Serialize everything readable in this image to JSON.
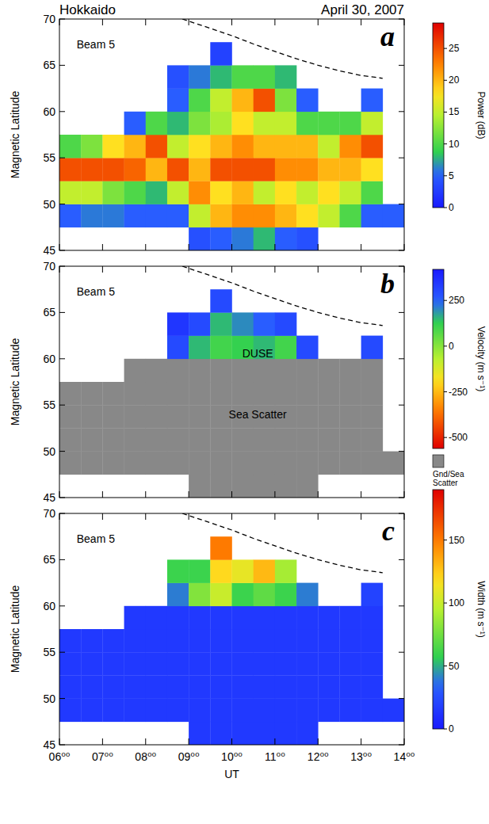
{
  "chart_data": [
    {
      "type": "heatmap",
      "title": "Hokkaido",
      "subtitle": "April 30, 2007",
      "panel_label": "a",
      "annotations": [
        {
          "text": "Beam 5",
          "x": 6.4,
          "y": 67.3
        }
      ],
      "y_label": "Magnetic Latitude",
      "xlim": [
        6,
        14
      ],
      "xticks": [
        6,
        7,
        8,
        9,
        10,
        11,
        12,
        13,
        14
      ],
      "ylim": [
        45,
        70
      ],
      "yticks": [
        45,
        50,
        55,
        60,
        65,
        70
      ],
      "tick_labels": "y",
      "x_bins": [
        6,
        6.5,
        7,
        7.5,
        8,
        8.5,
        9,
        9.5,
        10,
        10.5,
        11,
        11.5,
        12,
        12.5,
        13,
        13.5,
        14
      ],
      "y_bins": [
        45,
        47.5,
        50,
        52.5,
        55,
        57.5,
        60,
        62.5,
        65,
        67.5,
        70
      ],
      "values": [
        [
          null,
          5,
          15,
          25,
          10,
          null,
          null,
          null,
          null,
          null
        ],
        [
          null,
          6,
          15,
          25,
          12,
          null,
          null,
          null,
          null,
          null
        ],
        [
          null,
          6,
          12,
          25,
          18,
          null,
          null,
          null,
          null,
          null
        ],
        [
          null,
          5,
          10,
          24,
          20,
          5,
          null,
          null,
          null,
          null
        ],
        [
          null,
          5,
          8,
          20,
          25,
          10,
          null,
          null,
          null,
          null
        ],
        [
          null,
          5,
          15,
          25,
          15,
          8,
          5,
          4,
          null,
          null
        ],
        [
          4,
          15,
          22,
          20,
          18,
          12,
          10,
          6,
          null,
          null
        ],
        [
          5,
          20,
          18,
          25,
          20,
          14,
          15,
          8,
          3,
          null
        ],
        [
          6,
          22,
          20,
          25,
          22,
          18,
          20,
          10,
          null,
          null
        ],
        [
          8,
          22,
          15,
          25,
          20,
          15,
          25,
          10,
          null,
          null
        ],
        [
          5,
          20,
          18,
          22,
          20,
          15,
          12,
          8,
          null,
          null
        ],
        [
          4,
          18,
          15,
          22,
          20,
          10,
          5,
          null,
          null,
          null
        ],
        [
          null,
          15,
          18,
          20,
          15,
          10,
          null,
          null,
          null,
          null
        ],
        [
          null,
          10,
          15,
          20,
          22,
          10,
          null,
          null,
          null,
          null
        ],
        [
          null,
          5,
          10,
          18,
          25,
          15,
          5,
          null,
          null,
          null
        ],
        [
          null,
          5,
          null,
          null,
          null,
          null,
          null,
          null,
          null,
          null
        ]
      ],
      "colorbar": {
        "label": "Power (dB)",
        "range": [
          0,
          29
        ],
        "ticks": [
          0,
          5,
          10,
          15,
          20,
          25
        ]
      },
      "line": {
        "x": [
          8.85,
          9.5,
          10,
          10.5,
          11,
          11.5,
          12,
          12.5,
          13,
          13.5
        ],
        "y": [
          70,
          69,
          68.2,
          67.3,
          66.5,
          65.7,
          65,
          64.4,
          63.9,
          63.6
        ]
      },
      "line_style": "dashed"
    },
    {
      "type": "heatmap",
      "panel_label": "b",
      "annotations": [
        {
          "text": "Beam 5",
          "x": 6.4,
          "y": 67.3
        },
        {
          "text": "DUSE",
          "x": 10.6,
          "y": 60.6
        },
        {
          "text": "Sea Scatter",
          "x": 10.6,
          "y": 54
        }
      ],
      "y_label": "Magnetic Latitude",
      "xlim": [
        6,
        14
      ],
      "xticks": [
        6,
        7,
        8,
        9,
        10,
        11,
        12,
        13,
        14
      ],
      "ylim": [
        45,
        70
      ],
      "yticks": [
        45,
        50,
        55,
        60,
        65,
        70
      ],
      "tick_labels": "y",
      "x_bins": [
        6,
        6.5,
        7,
        7.5,
        8,
        8.5,
        9,
        9.5,
        10,
        10.5,
        11,
        11.5,
        12,
        12.5,
        13,
        13.5,
        14
      ],
      "y_bins": [
        45,
        47.5,
        50,
        52.5,
        55,
        57.5,
        60,
        62.5,
        65,
        67.5,
        70
      ],
      "values": [
        [
          null,
          null,
          null,
          null,
          null,
          null,
          null,
          null,
          null,
          null
        ],
        [
          null,
          null,
          null,
          null,
          null,
          null,
          null,
          null,
          null,
          null
        ],
        [
          null,
          null,
          null,
          null,
          null,
          null,
          null,
          null,
          null,
          null
        ],
        [
          null,
          null,
          null,
          null,
          null,
          null,
          null,
          null,
          null,
          null
        ],
        [
          null,
          null,
          null,
          null,
          null,
          null,
          null,
          null,
          null,
          null
        ],
        [
          null,
          null,
          null,
          null,
          null,
          null,
          300,
          350,
          null,
          null
        ],
        [
          null,
          null,
          null,
          null,
          null,
          null,
          150,
          300,
          null,
          null
        ],
        [
          null,
          null,
          null,
          null,
          null,
          null,
          100,
          150,
          300,
          null
        ],
        [
          null,
          null,
          null,
          null,
          null,
          null,
          120,
          200,
          null,
          null
        ],
        [
          null,
          null,
          null,
          null,
          null,
          null,
          150,
          250,
          null,
          null
        ],
        [
          null,
          null,
          null,
          null,
          null,
          null,
          100,
          300,
          null,
          null
        ],
        [
          null,
          null,
          null,
          null,
          null,
          null,
          300,
          null,
          null,
          null
        ],
        [
          null,
          null,
          null,
          null,
          null,
          null,
          null,
          null,
          null,
          null
        ],
        [
          null,
          null,
          null,
          null,
          null,
          null,
          null,
          null,
          null,
          null
        ],
        [
          null,
          null,
          null,
          null,
          null,
          null,
          300,
          null,
          null,
          null
        ],
        [
          null,
          null,
          null,
          null,
          null,
          null,
          null,
          null,
          null,
          null
        ]
      ],
      "ground_scatter": [
        [
          0,
          1,
          1,
          1,
          1,
          0,
          0,
          0,
          0,
          0
        ],
        [
          0,
          1,
          1,
          1,
          1,
          0,
          0,
          0,
          0,
          0
        ],
        [
          0,
          1,
          1,
          1,
          1,
          0,
          0,
          0,
          0,
          0
        ],
        [
          0,
          1,
          1,
          1,
          1,
          1,
          0,
          0,
          0,
          0
        ],
        [
          0,
          1,
          1,
          1,
          1,
          1,
          0,
          0,
          0,
          0
        ],
        [
          0,
          1,
          1,
          1,
          1,
          1,
          0,
          0,
          0,
          0
        ],
        [
          1,
          1,
          1,
          1,
          1,
          1,
          0,
          0,
          0,
          0
        ],
        [
          1,
          1,
          1,
          1,
          1,
          1,
          0,
          0,
          0,
          0
        ],
        [
          1,
          1,
          1,
          1,
          1,
          1,
          0,
          0,
          0,
          0
        ],
        [
          1,
          1,
          1,
          1,
          1,
          1,
          0,
          0,
          0,
          0
        ],
        [
          1,
          1,
          1,
          1,
          1,
          1,
          0,
          0,
          0,
          0
        ],
        [
          1,
          1,
          1,
          1,
          1,
          1,
          0,
          0,
          0,
          0
        ],
        [
          0,
          1,
          1,
          1,
          1,
          1,
          0,
          0,
          0,
          0
        ],
        [
          0,
          1,
          1,
          1,
          1,
          1,
          0,
          0,
          0,
          0
        ],
        [
          0,
          1,
          1,
          1,
          1,
          1,
          0,
          0,
          0,
          0
        ],
        [
          0,
          1,
          0,
          0,
          0,
          0,
          0,
          0,
          0,
          0
        ]
      ],
      "scatter_label": "Gnd/Sea Scatter",
      "colorbar": {
        "label": "Velocity (m s⁻¹)",
        "range": [
          -560,
          420
        ],
        "ticks": [
          -500,
          -250,
          0,
          250
        ]
      },
      "line": {
        "x": [
          8.85,
          9.5,
          10,
          10.5,
          11,
          11.5,
          12,
          12.5,
          13,
          13.5
        ],
        "y": [
          70,
          69,
          68.2,
          67.3,
          66.5,
          65.7,
          65,
          64.4,
          63.9,
          63.6
        ]
      },
      "line_style": "dashed"
    },
    {
      "type": "heatmap",
      "panel_label": "c",
      "annotations": [
        {
          "text": "Beam 5",
          "x": 6.4,
          "y": 67.3
        }
      ],
      "y_label": "Magnetic Latitude",
      "x_label": "UT",
      "xlim": [
        6,
        14
      ],
      "xticks": [
        {
          "value": 6,
          "label": "06⁰⁰"
        },
        {
          "value": 7,
          "label": "07⁰⁰"
        },
        {
          "value": 8,
          "label": "08⁰⁰"
        },
        {
          "value": 9,
          "label": "09⁰⁰"
        },
        {
          "value": 10,
          "label": "10⁰⁰"
        },
        {
          "value": 11,
          "label": "11⁰⁰"
        },
        {
          "value": 12,
          "label": "12⁰⁰"
        },
        {
          "value": 13,
          "label": "13⁰⁰"
        },
        {
          "value": 14,
          "label": "14⁰⁰"
        }
      ],
      "ylim": [
        45,
        70
      ],
      "yticks": [
        45,
        50,
        55,
        60,
        65,
        70
      ],
      "x_bins": [
        6,
        6.5,
        7,
        7.5,
        8,
        8.5,
        9,
        9.5,
        10,
        10.5,
        11,
        11.5,
        12,
        12.5,
        13,
        13.5,
        14
      ],
      "y_bins": [
        45,
        47.5,
        50,
        52.5,
        55,
        57.5,
        60,
        62.5,
        65,
        67.5,
        70
      ],
      "values": [
        [
          null,
          15,
          15,
          15,
          15,
          null,
          null,
          null,
          null,
          null
        ],
        [
          null,
          15,
          15,
          15,
          15,
          null,
          null,
          null,
          null,
          null
        ],
        [
          null,
          15,
          15,
          15,
          15,
          null,
          null,
          null,
          null,
          null
        ],
        [
          null,
          15,
          15,
          15,
          15,
          15,
          null,
          null,
          null,
          null
        ],
        [
          null,
          15,
          15,
          15,
          15,
          15,
          null,
          null,
          null,
          null
        ],
        [
          null,
          15,
          15,
          15,
          15,
          15,
          40,
          60,
          null,
          null
        ],
        [
          15,
          15,
          15,
          15,
          15,
          15,
          80,
          60,
          null,
          null
        ],
        [
          15,
          15,
          15,
          15,
          15,
          15,
          100,
          120,
          150,
          null
        ],
        [
          15,
          15,
          15,
          15,
          15,
          15,
          60,
          110,
          null,
          null
        ],
        [
          15,
          15,
          15,
          15,
          15,
          15,
          70,
          130,
          null,
          null
        ],
        [
          15,
          15,
          15,
          15,
          15,
          15,
          60,
          90,
          null,
          null
        ],
        [
          15,
          15,
          15,
          15,
          15,
          15,
          40,
          null,
          null,
          null
        ],
        [
          null,
          15,
          15,
          15,
          15,
          15,
          null,
          null,
          null,
          null
        ],
        [
          null,
          15,
          15,
          15,
          15,
          15,
          null,
          null,
          null,
          null
        ],
        [
          null,
          15,
          15,
          15,
          15,
          15,
          20,
          null,
          null,
          null
        ],
        [
          null,
          15,
          null,
          null,
          null,
          null,
          null,
          null,
          null,
          null
        ]
      ],
      "colorbar": {
        "label": "Width (m s⁻¹)",
        "range": [
          0,
          190
        ],
        "ticks": [
          0,
          50,
          100,
          150
        ]
      },
      "line": {
        "x": [
          8.85,
          9.5,
          10,
          10.5,
          11,
          11.5,
          12,
          12.5,
          13,
          13.5
        ],
        "y": [
          70,
          69,
          68.2,
          67.3,
          66.5,
          65.7,
          65,
          64.4,
          63.9,
          63.6
        ]
      },
      "line_style": "dashed"
    }
  ]
}
